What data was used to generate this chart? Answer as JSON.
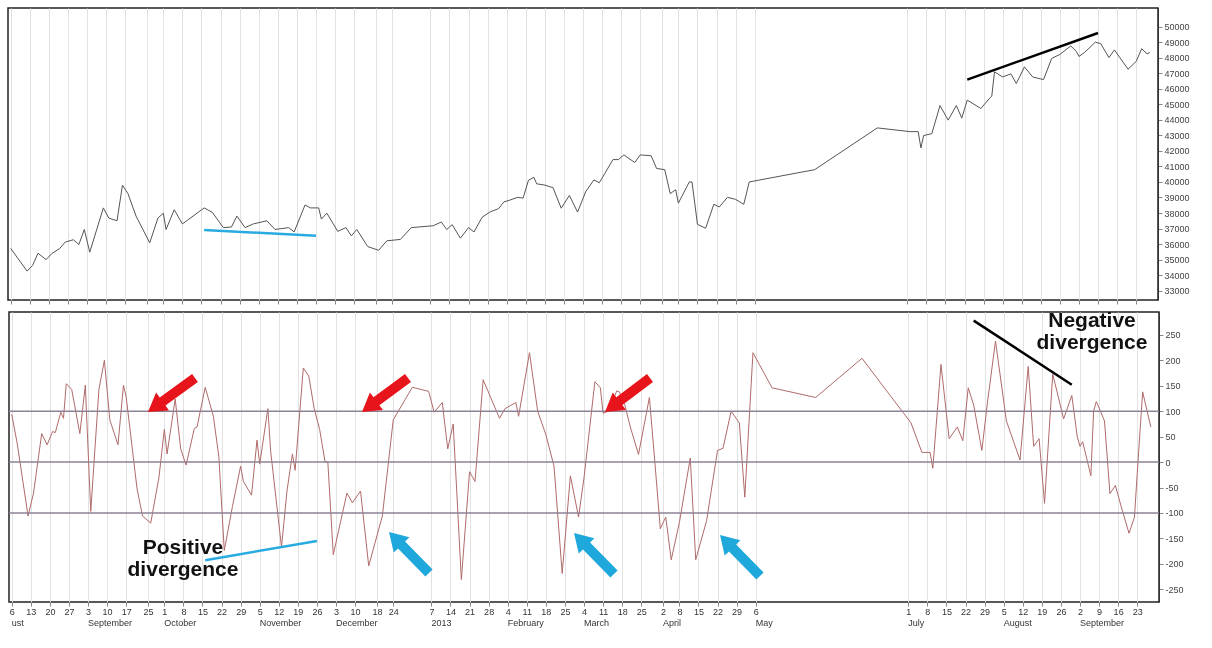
{
  "chart_data": [
    {
      "type": "line",
      "xlim": [
        "2012-08-05",
        "2013-10-01"
      ],
      "ylim": [
        32400,
        51200
      ],
      "grid": "x",
      "tick_labels": "y",
      "xticks": [
        {
          "value": "2012-08-06",
          "label": null
        },
        {
          "value": "2012-08-13",
          "label": null
        },
        {
          "value": "2012-08-20",
          "label": null
        },
        {
          "value": "2012-08-27",
          "label": null
        },
        {
          "value": "2012-09-03",
          "label": null
        },
        {
          "value": "2012-09-10",
          "label": null
        },
        {
          "value": "2012-09-17",
          "label": null
        },
        {
          "value": "2012-09-25",
          "label": null
        },
        {
          "value": "2012-10-01",
          "label": null
        },
        {
          "value": "2012-10-08",
          "label": null
        },
        {
          "value": "2012-10-15",
          "label": null
        },
        {
          "value": "2012-10-22",
          "label": null
        },
        {
          "value": "2012-10-29",
          "label": null
        },
        {
          "value": "2012-11-05",
          "label": null
        },
        {
          "value": "2012-11-12",
          "label": null
        },
        {
          "value": "2012-11-19",
          "label": null
        },
        {
          "value": "2012-11-26",
          "label": null
        },
        {
          "value": "2012-12-03",
          "label": null
        },
        {
          "value": "2012-12-10",
          "label": null
        },
        {
          "value": "2012-12-18",
          "label": null
        },
        {
          "value": "2012-12-24",
          "label": null
        },
        {
          "value": "2013-01-07",
          "label": null
        },
        {
          "value": "2013-01-14",
          "label": null
        },
        {
          "value": "2013-01-21",
          "label": null
        },
        {
          "value": "2013-01-28",
          "label": null
        },
        {
          "value": "2013-02-04",
          "label": null
        },
        {
          "value": "2013-02-11",
          "label": null
        },
        {
          "value": "2013-02-18",
          "label": null
        },
        {
          "value": "2013-02-25",
          "label": null
        },
        {
          "value": "2013-03-04",
          "label": null
        },
        {
          "value": "2013-03-11",
          "label": null
        },
        {
          "value": "2013-03-18",
          "label": null
        },
        {
          "value": "2013-03-25",
          "label": null
        },
        {
          "value": "2013-04-02",
          "label": null
        },
        {
          "value": "2013-04-08",
          "label": null
        },
        {
          "value": "2013-04-15",
          "label": null
        },
        {
          "value": "2013-04-22",
          "label": null
        },
        {
          "value": "2013-04-29",
          "label": null
        },
        {
          "value": "2013-05-06",
          "label": null
        },
        {
          "value": "2013-07-01",
          "label": null
        },
        {
          "value": "2013-07-08",
          "label": null
        },
        {
          "value": "2013-07-15",
          "label": null
        },
        {
          "value": "2013-07-22",
          "label": null
        },
        {
          "value": "2013-07-29",
          "label": null
        },
        {
          "value": "2013-08-05",
          "label": null
        },
        {
          "value": "2013-08-12",
          "label": null
        },
        {
          "value": "2013-08-19",
          "label": null
        },
        {
          "value": "2013-08-26",
          "label": null
        },
        {
          "value": "2013-09-02",
          "label": null
        },
        {
          "value": "2013-09-09",
          "label": null
        },
        {
          "value": "2013-09-16",
          "label": null
        },
        {
          "value": "2013-09-23",
          "label": null
        }
      ],
      "yticks": [
        33000,
        34000,
        35000,
        36000,
        37000,
        38000,
        39000,
        40000,
        41000,
        42000,
        43000,
        44000,
        45000,
        46000,
        47000,
        48000,
        49000,
        50000
      ],
      "series": [
        {
          "color": "#555555",
          "x": [
            "2012-08-06",
            "2012-08-12",
            "2012-08-14",
            "2012-08-16",
            "2012-08-19",
            "2012-08-21",
            "2012-08-24",
            "2012-08-26",
            "2012-08-29",
            "2012-08-31",
            "2012-09-02",
            "2012-09-04",
            "2012-09-09",
            "2012-09-11",
            "2012-09-14",
            "2012-09-16",
            "2012-09-18",
            "2012-09-21",
            "2012-09-26",
            "2012-09-29",
            "2012-10-01",
            "2012-10-02",
            "2012-10-05",
            "2012-10-08",
            "2012-10-16",
            "2012-10-19",
            "2012-10-23",
            "2012-10-26",
            "2012-10-28",
            "2012-10-31",
            "2012-11-03",
            "2012-11-08",
            "2012-11-11",
            "2012-11-16",
            "2012-11-18",
            "2012-11-22",
            "2012-11-24",
            "2012-11-27",
            "2012-11-28",
            "2012-11-30",
            "2012-12-04",
            "2012-12-07",
            "2012-12-09",
            "2012-12-11",
            "2012-12-15",
            "2012-12-19",
            "2012-12-22",
            "2012-12-27",
            "2012-12-31",
            "2013-01-08",
            "2013-01-11",
            "2013-01-13",
            "2013-01-15",
            "2013-01-18",
            "2013-01-21",
            "2013-01-23",
            "2013-01-26",
            "2013-01-29",
            "2013-02-01",
            "2013-02-03",
            "2013-02-05",
            "2013-02-08",
            "2013-02-10",
            "2013-02-12",
            "2013-02-14",
            "2013-02-15",
            "2013-02-18",
            "2013-02-21",
            "2013-02-24",
            "2013-02-27",
            "2013-03-02",
            "2013-03-05",
            "2013-03-08",
            "2013-03-10",
            "2013-03-15",
            "2013-03-17",
            "2013-03-19",
            "2013-03-23",
            "2013-03-25",
            "2013-03-29",
            "2013-03-31",
            "2013-04-03",
            "2013-04-05",
            "2013-04-07",
            "2013-04-08",
            "2013-04-12",
            "2013-04-13",
            "2013-04-15",
            "2013-04-18",
            "2013-04-21",
            "2013-04-23",
            "2013-04-26",
            "2013-04-29",
            "2013-05-02",
            "2013-05-04",
            "2013-05-28",
            "2013-06-20",
            "2013-07-02",
            "2013-07-05",
            "2013-07-06",
            "2013-07-07",
            "2013-07-10",
            "2013-07-13",
            "2013-07-16",
            "2013-07-19",
            "2013-07-21",
            "2013-07-23",
            "2013-07-28",
            "2013-07-31",
            "2013-08-01",
            "2013-08-02",
            "2013-08-05",
            "2013-08-08",
            "2013-08-10",
            "2013-08-13",
            "2013-08-16",
            "2013-08-20",
            "2013-08-23",
            "2013-08-26",
            "2013-08-30",
            "2013-09-01",
            "2013-09-02",
            "2013-09-04",
            "2013-09-08",
            "2013-09-10",
            "2013-09-13",
            "2013-09-15",
            "2013-09-20",
            "2013-09-23",
            "2013-09-25",
            "2013-09-27",
            "2013-09-28"
          ],
          "values": [
            35720,
            34260,
            34620,
            35410,
            35000,
            35380,
            35720,
            36130,
            36280,
            35970,
            36940,
            35480,
            38330,
            37670,
            37500,
            39790,
            39260,
            37800,
            36080,
            37670,
            37990,
            36940,
            38210,
            37300,
            38330,
            38040,
            37060,
            37100,
            37800,
            37060,
            37300,
            37500,
            36940,
            37060,
            36780,
            38520,
            38330,
            38330,
            37610,
            37990,
            36820,
            37060,
            36530,
            36940,
            35840,
            35600,
            36210,
            36300,
            37060,
            37180,
            37420,
            36940,
            37250,
            36380,
            37060,
            36780,
            37730,
            38080,
            38280,
            38720,
            38820,
            39010,
            38960,
            40110,
            40290,
            39880,
            39800,
            39630,
            38310,
            39130,
            38060,
            39380,
            40130,
            39950,
            41440,
            41440,
            41740,
            41250,
            41740,
            41690,
            40870,
            40790,
            39250,
            39500,
            38640,
            40000,
            40000,
            37270,
            37020,
            38560,
            38390,
            39010,
            38880,
            38560,
            40000,
            40790,
            43480,
            43240,
            43240,
            42190,
            42990,
            43110,
            44920,
            43980,
            44920,
            44110,
            45270,
            44730,
            45350,
            45520,
            47090,
            46760,
            46960,
            46340,
            47410,
            46760,
            46590,
            47960,
            48210,
            48760,
            48410,
            48080,
            48330,
            49000,
            48900,
            48010,
            48500,
            47260,
            47760,
            48580,
            48250,
            48330
          ]
        },
        {
          "type": "line",
          "color": "#29abe2",
          "x": [
            "2012-10-16",
            "2012-11-26"
          ],
          "values": [
            36910,
            36530
          ]
        },
        {
          "type": "line",
          "color": "#000000",
          "x": [
            "2013-07-23",
            "2013-09-09"
          ],
          "values": [
            46590,
            49590
          ]
        }
      ]
    },
    {
      "type": "line",
      "xlim": [
        "2012-08-05",
        "2013-10-01"
      ],
      "ylim": [
        -275,
        295
      ],
      "grid": "x",
      "xticks": [
        {
          "value": "2012-08-06",
          "label": "6"
        },
        {
          "value": "2012-08-13",
          "label": "13"
        },
        {
          "value": "2012-08-20",
          "label": "20"
        },
        {
          "value": "2012-08-27",
          "label": "27"
        },
        {
          "value": "2012-09-03",
          "label": "3"
        },
        {
          "value": "2012-09-10",
          "label": "10"
        },
        {
          "value": "2012-09-17",
          "label": "17"
        },
        {
          "value": "2012-09-25",
          "label": "25"
        },
        {
          "value": "2012-10-01",
          "label": "1"
        },
        {
          "value": "2012-10-08",
          "label": "8"
        },
        {
          "value": "2012-10-15",
          "label": "15"
        },
        {
          "value": "2012-10-22",
          "label": "22"
        },
        {
          "value": "2012-10-29",
          "label": "29"
        },
        {
          "value": "2012-11-05",
          "label": "5"
        },
        {
          "value": "2012-11-12",
          "label": "12"
        },
        {
          "value": "2012-11-19",
          "label": "19"
        },
        {
          "value": "2012-11-26",
          "label": "26"
        },
        {
          "value": "2012-12-03",
          "label": "3"
        },
        {
          "value": "2012-12-10",
          "label": "10"
        },
        {
          "value": "2012-12-18",
          "label": "18"
        },
        {
          "value": "2012-12-24",
          "label": "24"
        },
        {
          "value": "2013-01-07",
          "label": "7"
        },
        {
          "value": "2013-01-14",
          "label": "14"
        },
        {
          "value": "2013-01-21",
          "label": "21"
        },
        {
          "value": "2013-01-28",
          "label": "28"
        },
        {
          "value": "2013-02-04",
          "label": "4"
        },
        {
          "value": "2013-02-11",
          "label": "11"
        },
        {
          "value": "2013-02-18",
          "label": "18"
        },
        {
          "value": "2013-02-25",
          "label": "25"
        },
        {
          "value": "2013-03-04",
          "label": "4"
        },
        {
          "value": "2013-03-11",
          "label": "11"
        },
        {
          "value": "2013-03-18",
          "label": "18"
        },
        {
          "value": "2013-03-25",
          "label": "25"
        },
        {
          "value": "2013-04-02",
          "label": "2"
        },
        {
          "value": "2013-04-08",
          "label": "8"
        },
        {
          "value": "2013-04-15",
          "label": "15"
        },
        {
          "value": "2013-04-22",
          "label": "22"
        },
        {
          "value": "2013-04-29",
          "label": "29"
        },
        {
          "value": "2013-05-06",
          "label": "6"
        },
        {
          "value": "2013-07-01",
          "label": "1"
        },
        {
          "value": "2013-07-08",
          "label": "8"
        },
        {
          "value": "2013-07-15",
          "label": "15"
        },
        {
          "value": "2013-07-22",
          "label": "22"
        },
        {
          "value": "2013-07-29",
          "label": "29"
        },
        {
          "value": "2013-08-05",
          "label": "5"
        },
        {
          "value": "2013-08-12",
          "label": "12"
        },
        {
          "value": "2013-08-19",
          "label": "19"
        },
        {
          "value": "2013-08-26",
          "label": "26"
        },
        {
          "value": "2013-09-02",
          "label": "2"
        },
        {
          "value": "2013-09-09",
          "label": "9"
        },
        {
          "value": "2013-09-16",
          "label": "16"
        },
        {
          "value": "2013-09-23",
          "label": "23"
        }
      ],
      "yticks": [
        -250,
        -200,
        -150,
        -100,
        -50,
        0,
        50,
        100,
        150,
        200,
        250
      ],
      "ref_lines": [
        {
          "axis": "y",
          "value": 100,
          "color": "#8c8296"
        },
        {
          "axis": "y",
          "value": 0,
          "color": "#8c8296"
        },
        {
          "axis": "y",
          "value": -100,
          "color": "#8c8296"
        }
      ],
      "annotations": [
        "Positive divergence",
        "Negative divergence",
        "ust",
        "September",
        "October",
        "November",
        "December",
        "2013",
        "February",
        "March",
        "April",
        "May",
        "July",
        "August",
        "September"
      ],
      "series": [
        {
          "color": "#b06a6a",
          "x": [
            "2012-08-06",
            "2012-08-08",
            "2012-08-12",
            "2012-08-14",
            "2012-08-17",
            "2012-08-19",
            "2012-08-21",
            "2012-08-22",
            "2012-08-24",
            "2012-08-25",
            "2012-08-26",
            "2012-08-28",
            "2012-08-31",
            "2012-09-02",
            "2012-09-04",
            "2012-09-07",
            "2012-09-09",
            "2012-09-11",
            "2012-09-14",
            "2012-09-16",
            "2012-09-17",
            "2012-09-21",
            "2012-09-23",
            "2012-09-26",
            "2012-09-29",
            "2012-10-01",
            "2012-10-02",
            "2012-10-05",
            "2012-10-07",
            "2012-10-09",
            "2012-10-12",
            "2012-10-13",
            "2012-10-16",
            "2012-10-19",
            "2012-10-21",
            "2012-10-23",
            "2012-10-26",
            "2012-10-29",
            "2012-10-30",
            "2012-11-02",
            "2012-11-04",
            "2012-11-05",
            "2012-11-08",
            "2012-11-09",
            "2012-11-13",
            "2012-11-15",
            "2012-11-17",
            "2012-11-18",
            "2012-11-21",
            "2012-11-23",
            "2012-11-25",
            "2012-11-27",
            "2012-11-29",
            "2012-11-30",
            "2012-12-02",
            "2012-12-07",
            "2012-12-09",
            "2012-12-12",
            "2012-12-15",
            "2012-12-20",
            "2012-12-24",
            "2012-12-31",
            "2013-01-06",
            "2013-01-08",
            "2013-01-11",
            "2013-01-13",
            "2013-01-15",
            "2013-01-18",
            "2013-01-21",
            "2013-01-23",
            "2013-01-26",
            "2013-02-01",
            "2013-02-03",
            "2013-02-07",
            "2013-02-08",
            "2013-02-12",
            "2013-02-15",
            "2013-02-18",
            "2013-02-21",
            "2013-02-24",
            "2013-02-27",
            "2013-03-02",
            "2013-03-04",
            "2013-03-08",
            "2013-03-10",
            "2013-03-11",
            "2013-03-13",
            "2013-03-16",
            "2013-03-17",
            "2013-03-19",
            "2013-03-21",
            "2013-03-24",
            "2013-03-28",
            "2013-03-30",
            "2013-04-01",
            "2013-04-03",
            "2013-04-05",
            "2013-04-08",
            "2013-04-12",
            "2013-04-14",
            "2013-04-18",
            "2013-04-22",
            "2013-04-24",
            "2013-04-27",
            "2013-04-30",
            "2013-05-02",
            "2013-05-05",
            "2013-05-12",
            "2013-05-28",
            "2013-06-14",
            "2013-07-02",
            "2013-07-06",
            "2013-07-09",
            "2013-07-10",
            "2013-07-13",
            "2013-07-16",
            "2013-07-19",
            "2013-07-21",
            "2013-07-23",
            "2013-07-25",
            "2013-07-28",
            "2013-07-30",
            "2013-08-02",
            "2013-08-06",
            "2013-08-11",
            "2013-08-14",
            "2013-08-16",
            "2013-08-18",
            "2013-08-20",
            "2013-08-23",
            "2013-08-27",
            "2013-08-30",
            "2013-09-01",
            "2013-09-02",
            "2013-09-03",
            "2013-09-06",
            "2013-09-07",
            "2013-09-08",
            "2013-09-11",
            "2013-09-13",
            "2013-09-15",
            "2013-09-17",
            "2013-09-20",
            "2013-09-22",
            "2013-09-23",
            "2013-09-25",
            "2013-09-28"
          ],
          "values": [
            94,
            37,
            -106,
            -61,
            56,
            34,
            60,
            58,
            98,
            86,
            154,
            143,
            56,
            151,
            -97,
            143,
            200,
            83,
            34,
            151,
            128,
            -53,
            -106,
            -120,
            -31,
            64,
            16,
            124,
            26,
            -6,
            66,
            69,
            147,
            90,
            11,
            -174,
            -87,
            -8,
            -38,
            -65,
            43,
            -4,
            105,
            22,
            -167,
            -57,
            16,
            -16,
            185,
            169,
            105,
            64,
            0,
            0,
            -182,
            -61,
            -80,
            -57,
            -204,
            -106,
            83,
            147,
            139,
            98,
            117,
            26,
            75,
            -231,
            -19,
            -38,
            162,
            86,
            105,
            117,
            90,
            215,
            100,
            54,
            -8,
            -219,
            -27,
            -108,
            -31,
            158,
            146,
            96,
            100,
            140,
            138,
            112,
            69,
            15,
            127,
            0,
            -131,
            -108,
            -192,
            -119,
            8,
            -192,
            -115,
            23,
            27,
            100,
            77,
            -69,
            215,
            146,
            127,
            204,
            77,
            19,
            19,
            -12,
            192,
            46,
            69,
            42,
            146,
            112,
            23,
            115,
            238,
            81,
            4,
            188,
            31,
            46,
            -81,
            173,
            85,
            131,
            50,
            31,
            40,
            -27,
            100,
            119,
            81,
            -62,
            -46,
            -85,
            -140,
            -108,
            -23,
            138,
            69
          ]
        },
        {
          "type": "line",
          "color": "#29abe2",
          "x": [
            "2012-10-16",
            "2012-11-26"
          ],
          "values": [
            -193,
            -155
          ]
        },
        {
          "type": "line",
          "color": "#000000",
          "x": [
            "2013-07-25",
            "2013-08-30"
          ],
          "values": [
            278,
            152
          ]
        }
      ]
    }
  ]
}
